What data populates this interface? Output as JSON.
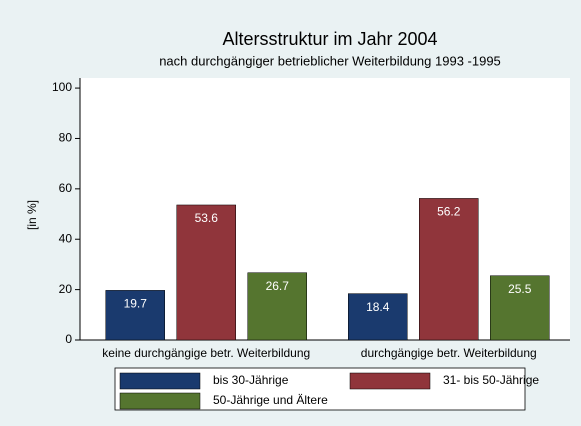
{
  "chart_data": {
    "type": "bar",
    "title": "Altersstruktur im Jahr 2004",
    "subtitle": "nach durchgängiger betrieblicher Weiterbildung 1993 -1995",
    "y_label": "[in %]",
    "categories": [
      "keine durchgängige betr. Weiterbildung",
      "durchgängige betr. Weiterbildung"
    ],
    "series": [
      {
        "name": "bis 30-Jährige",
        "color": "#1a3a6e",
        "values": [
          19.7,
          18.4
        ]
      },
      {
        "name": "31- bis 50-Jährige",
        "color": "#90353b",
        "values": [
          53.6,
          56.2
        ]
      },
      {
        "name": "50-Jährige und Ältere",
        "color": "#55752f",
        "values": [
          26.7,
          25.5
        ]
      }
    ],
    "ylim": [
      0,
      104
    ],
    "yticks": [
      0,
      20,
      40,
      60,
      80,
      100
    ],
    "grid": false
  }
}
